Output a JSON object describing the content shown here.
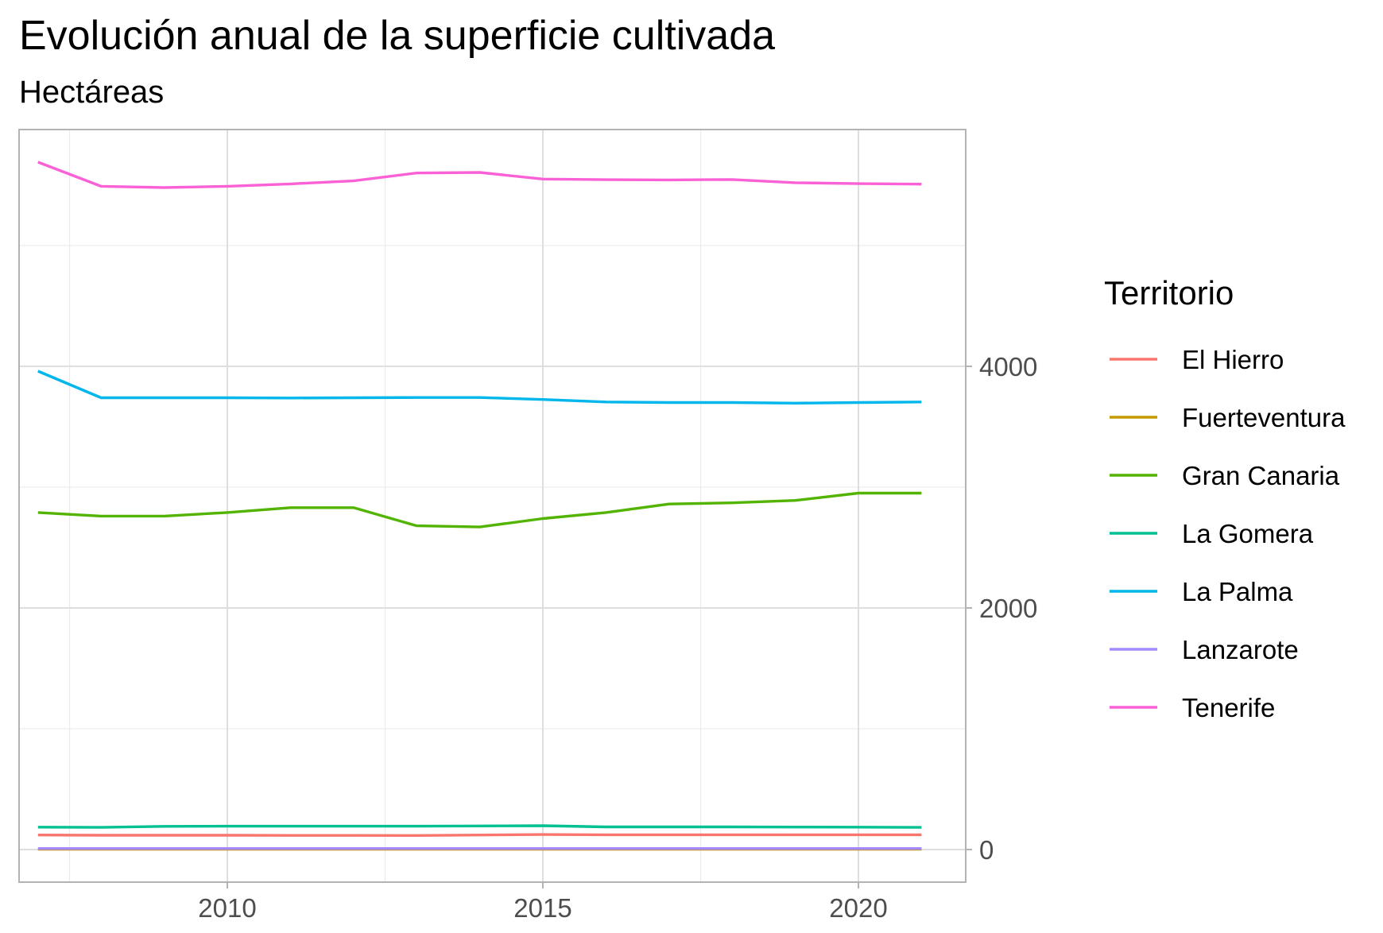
{
  "chart_data": {
    "type": "line",
    "title": "Evolución anual de la superficie cultivada",
    "subtitle": "Hectáreas",
    "xlabel": "",
    "ylabel": "",
    "xlim": [
      2006.7,
      2021.7
    ],
    "ylim": [
      -270,
      5960
    ],
    "x_ticks": [
      2010,
      2015,
      2020
    ],
    "y_ticks": [
      0,
      2000,
      4000
    ],
    "y_axis_position": "right",
    "grid": true,
    "legend_title": "Territorio",
    "legend_position": "right",
    "x": [
      2007,
      2008,
      2009,
      2010,
      2011,
      2012,
      2013,
      2014,
      2015,
      2016,
      2017,
      2018,
      2019,
      2020,
      2021
    ],
    "series": [
      {
        "name": "El Hierro",
        "color": "#F8766D",
        "values": [
          120,
          118,
          118,
          118,
          117,
          117,
          116,
          120,
          124,
          122,
          122,
          122,
          122,
          122,
          122
        ]
      },
      {
        "name": "Fuerteventura",
        "color": "#C49A00",
        "values": [
          3,
          3,
          3,
          3,
          3,
          3,
          3,
          3,
          3,
          3,
          3,
          3,
          3,
          3,
          3
        ]
      },
      {
        "name": "Gran Canaria",
        "color": "#53B400",
        "values": [
          2790,
          2760,
          2760,
          2790,
          2830,
          2830,
          2680,
          2670,
          2740,
          2790,
          2860,
          2870,
          2890,
          2950,
          2950
        ]
      },
      {
        "name": "La Gomera",
        "color": "#00C094",
        "values": [
          185,
          183,
          192,
          193,
          193,
          193,
          193,
          195,
          197,
          187,
          187,
          187,
          186,
          185,
          183
        ]
      },
      {
        "name": "La Palma",
        "color": "#00B6EB",
        "values": [
          3960,
          3740,
          3740,
          3740,
          3738,
          3740,
          3742,
          3742,
          3725,
          3705,
          3700,
          3700,
          3695,
          3700,
          3705
        ]
      },
      {
        "name": "Lanzarote",
        "color": "#A58AFF",
        "values": [
          8,
          8,
          8,
          8,
          8,
          8,
          8,
          8,
          8,
          8,
          8,
          8,
          8,
          8,
          8
        ]
      },
      {
        "name": "Tenerife",
        "color": "#FB61D7",
        "values": [
          5690,
          5490,
          5480,
          5490,
          5510,
          5535,
          5600,
          5605,
          5550,
          5545,
          5543,
          5546,
          5520,
          5512,
          5508
        ]
      }
    ]
  }
}
